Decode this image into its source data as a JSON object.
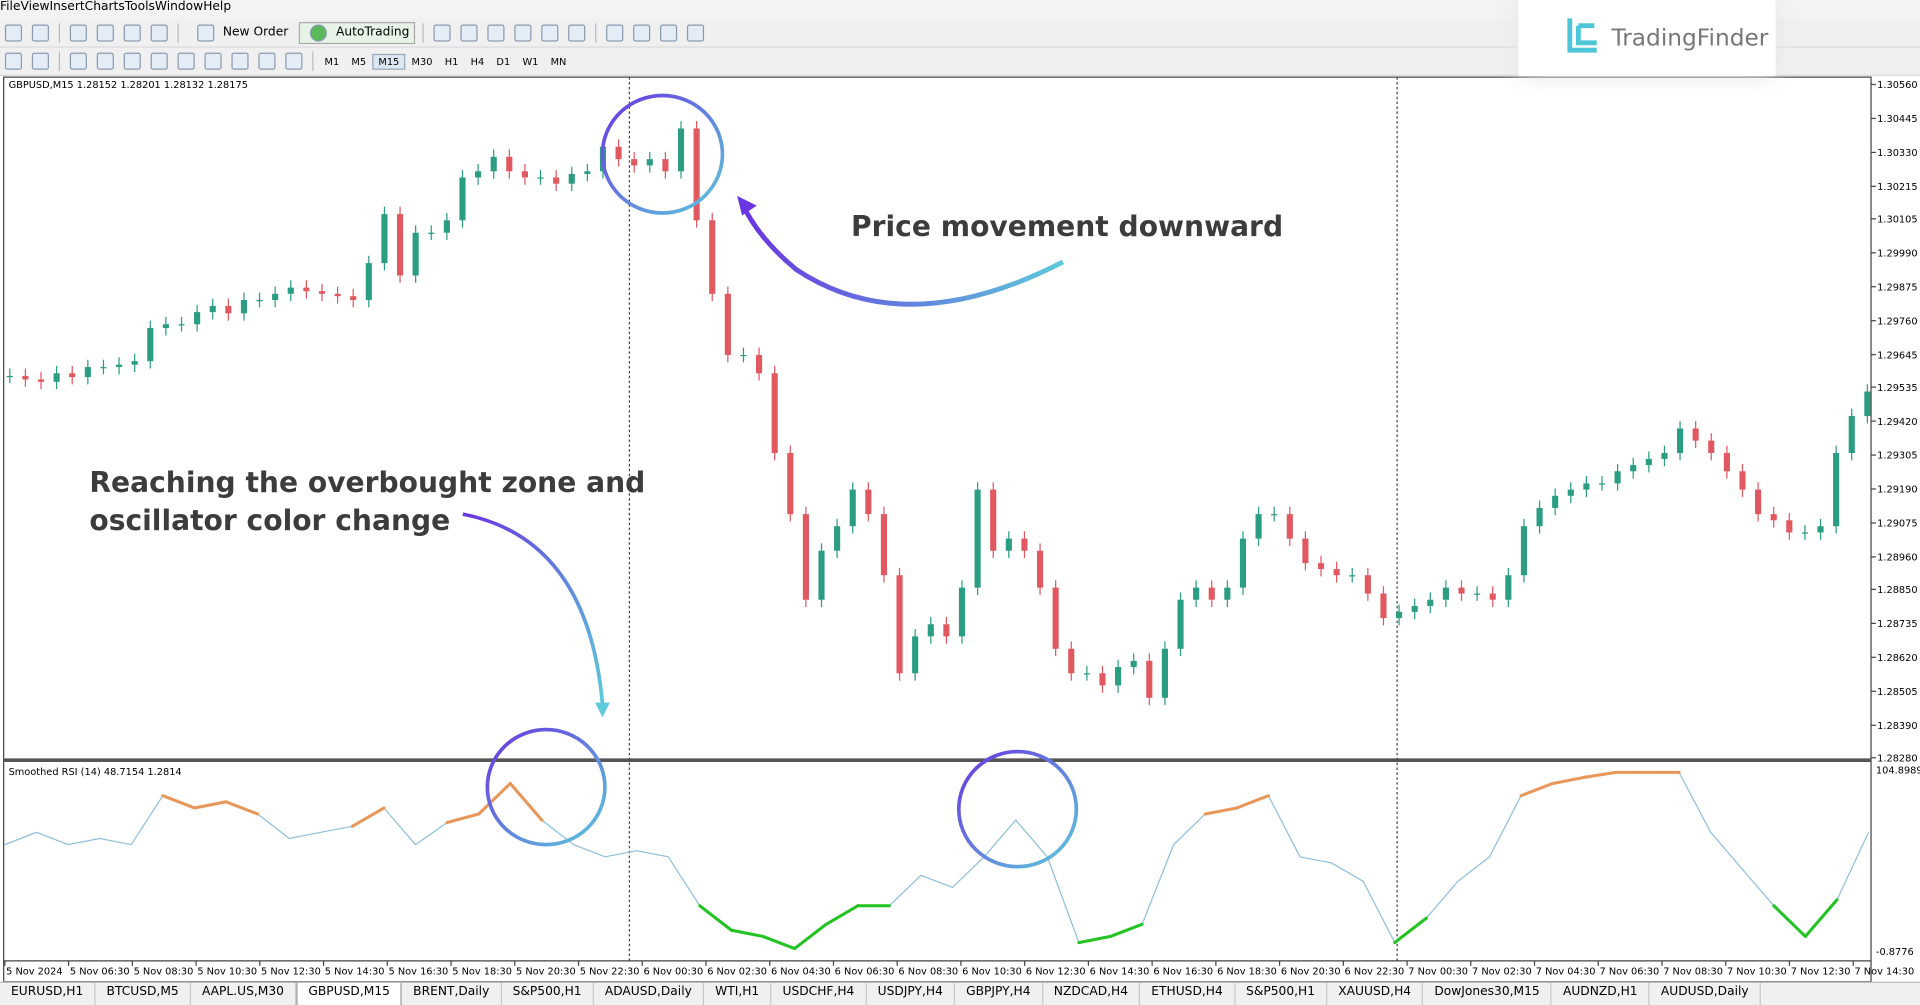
{
  "menu": [
    "File",
    "View",
    "Insert",
    "Charts",
    "Tools",
    "Window",
    "Help"
  ],
  "toolbar": {
    "new_order": "New Order",
    "auto_trading": "AutoTrading",
    "timeframes": [
      "M1",
      "M5",
      "M15",
      "M30",
      "H1",
      "H4",
      "D1",
      "W1",
      "MN"
    ],
    "active_timeframe": 2
  },
  "logo": "TradingFinder",
  "chart_data": {
    "type": "candlestick",
    "symbol_info": "GBPUSD,M15 1.28152 1.28201 1.28132 1.28175",
    "closes": [
      1.29573,
      1.29561,
      1.29553,
      1.29582,
      1.29569,
      1.29603,
      1.29603,
      1.29611,
      1.29623,
      1.29735,
      1.29748,
      1.29748,
      1.29789,
      1.2981,
      1.29785,
      1.2983,
      1.2983,
      1.29851,
      1.29872,
      1.2986,
      1.29851,
      1.29843,
      1.2983,
      1.29955,
      1.30121,
      1.29913,
      1.30058,
      1.30058,
      1.301,
      1.30245,
      1.30266,
      1.30315,
      1.30266,
      1.30245,
      1.30245,
      1.30224,
      1.30257,
      1.30266,
      1.30349,
      1.30307,
      1.30286,
      1.30307,
      1.30266,
      1.30411,
      1.301,
      1.29851,
      1.29644,
      1.29644,
      1.29582,
      1.29312,
      1.29105,
      1.28815,
      1.28981,
      1.29064,
      1.29188,
      1.29105,
      1.28898,
      1.28566,
      1.28691,
      1.28732,
      1.28691,
      1.28856,
      1.29188,
      1.28981,
      1.29022,
      1.28981,
      1.28856,
      1.28649,
      1.28566,
      1.28566,
      1.28525,
      1.28587,
      1.28608,
      1.28483,
      1.28649,
      1.28815,
      1.28856,
      1.28815,
      1.28856,
      1.29022,
      1.29105,
      1.29105,
      1.29022,
      1.28939,
      1.28919,
      1.28898,
      1.28898,
      1.28836,
      1.28753,
      1.28774,
      1.28794,
      1.28815,
      1.28856,
      1.28836,
      1.28836,
      1.28815,
      1.28898,
      1.29064,
      1.29126,
      1.29167,
      1.29188,
      1.29209,
      1.29209,
      1.2925,
      1.29271,
      1.29292,
      1.29312,
      1.29395,
      1.29354,
      1.29312,
      1.2925,
      1.29188,
      1.29105,
      1.29084,
      1.29043,
      1.29043,
      1.29064,
      1.29312,
      1.29437,
      1.2952
    ],
    "ylim": [
      1.2828,
      1.3056
    ],
    "yticks": [
      {
        "value": 1.3056,
        "label": "1.30560"
      },
      1.30445,
      {
        "value": 1.3033,
        "label": "1.30330"
      },
      1.30215,
      1.30105,
      {
        "value": 1.2999,
        "label": "1.29990"
      },
      1.29875,
      {
        "value": 1.2976,
        "label": "1.29760"
      },
      1.29645,
      1.29535,
      {
        "value": 1.2942,
        "label": "1.29420"
      },
      1.29305,
      {
        "value": 1.2919,
        "label": "1.29190"
      },
      1.29075,
      {
        "value": 1.2896,
        "label": "1.28960"
      },
      {
        "value": 1.2885,
        "label": "1.28850"
      },
      1.28735,
      {
        "value": 1.2862,
        "label": "1.28620"
      },
      1.28505,
      {
        "value": 1.2839,
        "label": "1.28390"
      },
      {
        "value": 1.2828,
        "label": "1.28280"
      }
    ],
    "x_labels": [
      "5 Nov 2024",
      "5 Nov 06:30",
      "5 Nov 08:30",
      "5 Nov 10:30",
      "5 Nov 12:30",
      "5 Nov 14:30",
      "5 Nov 16:30",
      "5 Nov 18:30",
      "5 Nov 20:30",
      "5 Nov 22:30",
      "6 Nov 00:30",
      "6 Nov 02:30",
      "6 Nov 04:30",
      "6 Nov 06:30",
      "6 Nov 08:30",
      "6 Nov 10:30",
      "6 Nov 12:30",
      "6 Nov 14:30",
      "6 Nov 16:30",
      "6 Nov 18:30",
      "6 Nov 20:30",
      "6 Nov 22:30",
      "7 Nov 00:30",
      "7 Nov 02:30",
      "7 Nov 04:30",
      "7 Nov 06:30",
      "7 Nov 08:30",
      "7 Nov 10:30",
      "7 Nov 12:30",
      "7 Nov 14:30"
    ],
    "up_color": "#2a9d83",
    "down_color": "#e05860"
  },
  "indicator": {
    "type": "line",
    "title": "Smoothed RSI (14) 48.7154 1.2814",
    "values": [
      61.3,
      68.5,
      61.3,
      64.9,
      61.3,
      89.9,
      82.7,
      86.3,
      79.2,
      64.9,
      68.5,
      72.0,
      82.7,
      61.3,
      74.2,
      79.2,
      97.0,
      75.6,
      61.3,
      54.2,
      57.7,
      54.2,
      25.6,
      11.3,
      7.7,
      0.6,
      14.8,
      25.6,
      25.6,
      43.4,
      36.3,
      54.2,
      75.6,
      54.2,
      4.1,
      7.7,
      14.8,
      61.3,
      79.2,
      82.7,
      89.9,
      54.2,
      50.6,
      39.9,
      4.1,
      18.4,
      39.9,
      54.2,
      89.9,
      97.0,
      100.6,
      103.5,
      103.5,
      103.5,
      68.5,
      47.0,
      25.6,
      7.7,
      29.1,
      68.5
    ],
    "ylim": [
      -0.8776,
      104.8989
    ],
    "yticks": [
      104.8989,
      -0.8776
    ],
    "overbought": 70,
    "oversold": 30,
    "line_color": "#8fbfdc",
    "overbought_color": "#e8975a",
    "oversold_color": "#22c322"
  },
  "annotations": {
    "price": "Price movement downward",
    "overbought_1": "Reaching the overbought zone and",
    "overbought_2": "oscillator color change"
  },
  "tabs": [
    "EURUSD,H1",
    "BTCUSD,M5",
    "AAPL.US,M30",
    "GBPUSD,M15",
    "BRENT,Daily",
    "S&P500,H1",
    "ADAUSD,Daily",
    "WTI,H1",
    "USDCHF,H4",
    "USDJPY,H4",
    "GBPJPY,H4",
    "NZDCAD,H4",
    "ETHUSD,H4",
    "S&P500,H1",
    "XAUUSD,H4",
    "DowJones30,M15",
    "AUDNZD,H1",
    "AUDUSD,Daily"
  ],
  "active_tab": 3
}
